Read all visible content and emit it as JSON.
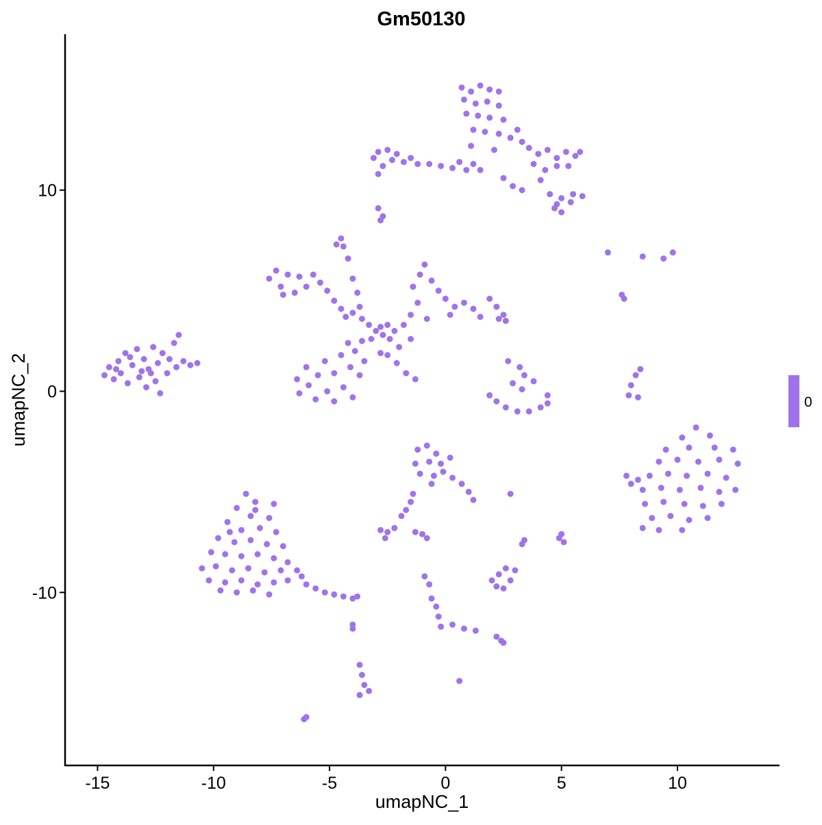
{
  "chart_data": {
    "type": "scatter",
    "title": "Gm50130",
    "xlabel": "umapNC_1",
    "ylabel": "umapNC_2",
    "xlim": [
      -16.4,
      14.4
    ],
    "ylim": [
      -18.6,
      17.75
    ],
    "xticks": [
      -15,
      -10,
      -5,
      0,
      5,
      10
    ],
    "yticks": [
      -10,
      0,
      10
    ],
    "xtick_labels": [
      "-15",
      "-10",
      "-5",
      "0",
      "5",
      "10"
    ],
    "ytick_labels": [
      "-10",
      "0",
      "10"
    ],
    "grid": false,
    "point_color": "#9f74ea",
    "legend": {
      "position": "right",
      "labels": [
        "0"
      ],
      "color": "#9f74ea"
    },
    "points": [
      [
        -14.7,
        0.8
      ],
      [
        -14.5,
        1.2
      ],
      [
        -14.3,
        0.6
      ],
      [
        -14.1,
        1.5
      ],
      [
        -14,
        0.9
      ],
      [
        -13.8,
        1.9
      ],
      [
        -13.7,
        0.4
      ],
      [
        -13.5,
        1.3
      ],
      [
        -13.3,
        2.1
      ],
      [
        -13.2,
        0.7
      ],
      [
        -13,
        1.6
      ],
      [
        -12.9,
        0.2
      ],
      [
        -12.8,
        1.1
      ],
      [
        -12.6,
        2.2
      ],
      [
        -12.5,
        0.5
      ],
      [
        -12.4,
        1.4
      ],
      [
        -12.3,
        -0.1
      ],
      [
        -12.2,
        1.9
      ],
      [
        -12,
        0.9
      ],
      [
        -11.9,
        1.6
      ],
      [
        -11.7,
        2.4
      ],
      [
        -11.6,
        1.2
      ],
      [
        -11.5,
        2.8
      ],
      [
        -11.3,
        1.5
      ],
      [
        -11,
        1.3
      ],
      [
        -10.7,
        1.4
      ],
      [
        -13.6,
        1.7
      ],
      [
        -12.7,
        0.9
      ],
      [
        -14.2,
        1.1
      ],
      [
        -13.1,
        1.0
      ],
      [
        -8.6,
        -5.1
      ],
      [
        -8.2,
        -5.5
      ],
      [
        -7.4,
        -5.6
      ],
      [
        -9,
        -5.8
      ],
      [
        -8.4,
        -6.2
      ],
      [
        -7.6,
        -6.3
      ],
      [
        -9.4,
        -6.5
      ],
      [
        -8.8,
        -6.9
      ],
      [
        -8,
        -6.8
      ],
      [
        -7.3,
        -7
      ],
      [
        -9.8,
        -7.3
      ],
      [
        -9.1,
        -7.5
      ],
      [
        -8.4,
        -7.4
      ],
      [
        -7.7,
        -7.6
      ],
      [
        -7,
        -7.7
      ],
      [
        -10.1,
        -8
      ],
      [
        -9.5,
        -8.1
      ],
      [
        -8.8,
        -8.2
      ],
      [
        -8.1,
        -8.1
      ],
      [
        -7.4,
        -8.3
      ],
      [
        -6.8,
        -8.5
      ],
      [
        -10.5,
        -8.8
      ],
      [
        -9.9,
        -8.7
      ],
      [
        -9.2,
        -8.9
      ],
      [
        -8.5,
        -8.8
      ],
      [
        -7.8,
        -9
      ],
      [
        -7.1,
        -8.9
      ],
      [
        -6.4,
        -8.9
      ],
      [
        -10.2,
        -9.4
      ],
      [
        -9.5,
        -9.5
      ],
      [
        -8.8,
        -9.4
      ],
      [
        -8.1,
        -9.6
      ],
      [
        -7.4,
        -9.5
      ],
      [
        -6.8,
        -9.4
      ],
      [
        -9.7,
        -9.9
      ],
      [
        -9,
        -10
      ],
      [
        -8.3,
        -9.9
      ],
      [
        -7.6,
        -10.1
      ],
      [
        -6,
        -9.6
      ],
      [
        -5.6,
        -9.8
      ],
      [
        -5.2,
        -10
      ],
      [
        -4.8,
        -10.1
      ],
      [
        -4.4,
        -10.2
      ],
      [
        -4,
        -10.3
      ],
      [
        -3.8,
        -10.2
      ],
      [
        -6.2,
        -9.2
      ],
      [
        -9.3,
        -7
      ],
      [
        -8.2,
        -5.9
      ],
      [
        10.8,
        -1.8
      ],
      [
        10.2,
        -2.3
      ],
      [
        11.4,
        -2.2
      ],
      [
        9.5,
        -2.9
      ],
      [
        10.5,
        -2.8
      ],
      [
        11.6,
        -2.8
      ],
      [
        12.4,
        -2.9
      ],
      [
        9.2,
        -3.5
      ],
      [
        10,
        -3.4
      ],
      [
        10.9,
        -3.5
      ],
      [
        11.8,
        -3.4
      ],
      [
        12.6,
        -3.6
      ],
      [
        8.8,
        -4.2
      ],
      [
        9.6,
        -4.1
      ],
      [
        10.4,
        -4.2
      ],
      [
        11.3,
        -4.1
      ],
      [
        12.1,
        -4.3
      ],
      [
        8.5,
        -4.9
      ],
      [
        9.3,
        -4.8
      ],
      [
        10.1,
        -4.9
      ],
      [
        11,
        -4.8
      ],
      [
        11.8,
        -5
      ],
      [
        12.5,
        -4.9
      ],
      [
        8.6,
        -5.6
      ],
      [
        9.4,
        -5.5
      ],
      [
        10.3,
        -5.6
      ],
      [
        11.1,
        -5.7
      ],
      [
        11.9,
        -5.6
      ],
      [
        8.9,
        -6.3
      ],
      [
        9.7,
        -6.2
      ],
      [
        10.5,
        -6.4
      ],
      [
        11.3,
        -6.3
      ],
      [
        9.2,
        -6.9
      ],
      [
        8.5,
        -6.8
      ],
      [
        10.2,
        -6.9
      ],
      [
        7.8,
        -4.2
      ],
      [
        8,
        -4.6
      ],
      [
        8.3,
        -4.4
      ],
      [
        -7.6,
        5.6
      ],
      [
        -7.3,
        6
      ],
      [
        -7.1,
        5.2
      ],
      [
        -6.8,
        5.8
      ],
      [
        -6.5,
        4.9
      ],
      [
        -6.3,
        5.7
      ],
      [
        -6,
        5.2
      ],
      [
        -5.7,
        5.8
      ],
      [
        -5.4,
        5.4
      ],
      [
        -7,
        4.8
      ],
      [
        -5.1,
        5
      ],
      [
        -4.8,
        4.5
      ],
      [
        -4.5,
        4.1
      ],
      [
        -4,
        3.9
      ],
      [
        -3.6,
        3.6
      ],
      [
        -3.3,
        3.3
      ],
      [
        -3,
        3
      ],
      [
        -2.7,
        2.8
      ],
      [
        -2.4,
        2.6
      ],
      [
        -3.2,
        2.6
      ],
      [
        -2.8,
        3.2
      ],
      [
        -2.5,
        3.3
      ],
      [
        -3.7,
        4.2
      ],
      [
        -4.3,
        3.7
      ],
      [
        -4.7,
        7.3
      ],
      [
        -4.5,
        7.6
      ],
      [
        -4.4,
        7.2
      ],
      [
        -4.2,
        6.6
      ],
      [
        -4,
        5.6
      ],
      [
        -3.8,
        4.9
      ],
      [
        -6.4,
        0.6
      ],
      [
        -6.3,
        -0.1
      ],
      [
        -6,
        1.2
      ],
      [
        -5.9,
        0.3
      ],
      [
        -5.6,
        -0.4
      ],
      [
        -5.5,
        0.8
      ],
      [
        -5.2,
        1.5
      ],
      [
        -5.1,
        0
      ],
      [
        -4.8,
        -0.5
      ],
      [
        -4.8,
        0.9
      ],
      [
        -4.5,
        1.8
      ],
      [
        -4.4,
        0.2
      ],
      [
        -4.1,
        1.2
      ],
      [
        -4,
        -0.3
      ],
      [
        -3.9,
        2
      ],
      [
        -3.7,
        0.8
      ],
      [
        -3.6,
        2.5
      ],
      [
        -3.5,
        1.5
      ],
      [
        -4.2,
        2.4
      ],
      [
        -2.2,
        3
      ],
      [
        -1.8,
        3.3
      ],
      [
        -1.5,
        3.8
      ],
      [
        -1.2,
        4.4
      ],
      [
        -1.4,
        5.2
      ],
      [
        -1.1,
        5.8
      ],
      [
        -0.9,
        6.3
      ],
      [
        -0.6,
        5.5
      ],
      [
        -0.3,
        5
      ],
      [
        0,
        4.6
      ],
      [
        0.4,
        4.2
      ],
      [
        0.8,
        4.4
      ],
      [
        1.2,
        4.1
      ],
      [
        1.5,
        3.7
      ],
      [
        1.9,
        4.6
      ],
      [
        2.2,
        4.2
      ],
      [
        2.5,
        3.8
      ],
      [
        2.6,
        3.5
      ],
      [
        2.3,
        3.6
      ],
      [
        -0.8,
        3.6
      ],
      [
        0.2,
        3.8
      ],
      [
        -2,
        2.2
      ],
      [
        -2.8,
        1.9
      ],
      [
        -1.5,
        2.6
      ],
      [
        -2.5,
        1.8
      ],
      [
        -2.1,
        1.4
      ],
      [
        -1.7,
        0.9
      ],
      [
        -1.3,
        0.6
      ],
      [
        -3.1,
        11.6
      ],
      [
        -2.9,
        11.9
      ],
      [
        -2.7,
        11.2
      ],
      [
        -2.5,
        12
      ],
      [
        -2.3,
        11.5
      ],
      [
        -2.1,
        11.8
      ],
      [
        -1.8,
        11.4
      ],
      [
        -1.5,
        11.6
      ],
      [
        -2.9,
        10.8
      ],
      [
        -1.2,
        11.3
      ],
      [
        -0.7,
        11.3
      ],
      [
        -0.2,
        11.2
      ],
      [
        0.3,
        11.1
      ],
      [
        0.6,
        11.4
      ],
      [
        0.9,
        11
      ],
      [
        1.2,
        11.3
      ],
      [
        1.5,
        11.0
      ],
      [
        0.7,
        15.1
      ],
      [
        1.1,
        14.9
      ],
      [
        1.5,
        15.2
      ],
      [
        1.9,
        15
      ],
      [
        2.3,
        14.9
      ],
      [
        0.8,
        14.5
      ],
      [
        1.3,
        14.3
      ],
      [
        1.8,
        14.4
      ],
      [
        2.3,
        14.2
      ],
      [
        0.9,
        13.8
      ],
      [
        1.4,
        13.7
      ],
      [
        1.9,
        13.6
      ],
      [
        2.5,
        13.5
      ],
      [
        1.2,
        13
      ],
      [
        1.7,
        12.9
      ],
      [
        2.3,
        12.8
      ],
      [
        1.1,
        12.2
      ],
      [
        2.1,
        12
      ],
      [
        2.8,
        12.6
      ],
      [
        3.1,
        13
      ],
      [
        3.3,
        12.4
      ],
      [
        3.6,
        12.1
      ],
      [
        4,
        11.8
      ],
      [
        4.4,
        12
      ],
      [
        4.8,
        11.6
      ],
      [
        5.2,
        11.9
      ],
      [
        5.6,
        11.7
      ],
      [
        5.8,
        11.9
      ],
      [
        3.8,
        11.3
      ],
      [
        4.3,
        11
      ],
      [
        4.8,
        11.2
      ],
      [
        5.3,
        11.2
      ],
      [
        4.1,
        10.5
      ],
      [
        2.5,
        10.6
      ],
      [
        2.9,
        10.2
      ],
      [
        3.3,
        10
      ],
      [
        4.5,
        9.8
      ],
      [
        5,
        9.6
      ],
      [
        5.5,
        9.8
      ],
      [
        5.9,
        9.7
      ],
      [
        5.4,
        9.4
      ],
      [
        4.7,
        9.1
      ],
      [
        5,
        8.9
      ],
      [
        4.8,
        9.3
      ],
      [
        -2.8,
        8.5
      ],
      [
        -2.7,
        8.7
      ],
      [
        -2.9,
        9.1
      ],
      [
        2.7,
        1.5
      ],
      [
        3.2,
        1.2
      ],
      [
        3.4,
        0.8
      ],
      [
        2.9,
        0.4
      ],
      [
        3.3,
        0.1
      ],
      [
        3.8,
        0.5
      ],
      [
        4.4,
        -0.2
      ],
      [
        1.9,
        -0.2
      ],
      [
        2.2,
        -0.5
      ],
      [
        2.6,
        -0.8
      ],
      [
        3.1,
        -1
      ],
      [
        3.6,
        -1
      ],
      [
        4.1,
        -0.8
      ],
      [
        4.4,
        -0.6
      ],
      [
        7.9,
        -0.2
      ],
      [
        8,
        0.3
      ],
      [
        8.2,
        0.8
      ],
      [
        8.4,
        1.1
      ],
      [
        8.3,
        -0.3
      ],
      [
        7,
        6.9
      ],
      [
        8.5,
        6.7
      ],
      [
        9.4,
        6.6
      ],
      [
        9.8,
        6.9
      ],
      [
        7.6,
        4.8
      ],
      [
        7.7,
        4.6
      ],
      [
        -1.2,
        -2.9
      ],
      [
        -0.8,
        -2.7
      ],
      [
        -0.4,
        -3.1
      ],
      [
        -1.3,
        -3.6
      ],
      [
        -0.7,
        -3.5
      ],
      [
        -0.2,
        -3.6
      ],
      [
        -1.1,
        -4.1
      ],
      [
        -0.5,
        -4.2
      ],
      [
        -0.1,
        -4
      ],
      [
        -0.6,
        -4.6
      ],
      [
        0.3,
        -4.3
      ],
      [
        0.7,
        -4.6
      ],
      [
        1,
        -5
      ],
      [
        1.2,
        -5.4
      ],
      [
        0.2,
        -3.3
      ],
      [
        -1.4,
        -5.1
      ],
      [
        -1.5,
        -5.5
      ],
      [
        -1.7,
        -5.9
      ],
      [
        -1.9,
        -6.2
      ],
      [
        -2.8,
        -6.9
      ],
      [
        -2.5,
        -7
      ],
      [
        -2.2,
        -6.8
      ],
      [
        -2.6,
        -7.3
      ],
      [
        -1.3,
        -7
      ],
      [
        -1,
        -7.1
      ],
      [
        -0.8,
        -7.3
      ],
      [
        2,
        -9.4
      ],
      [
        2.3,
        -9.1
      ],
      [
        2.6,
        -8.8
      ],
      [
        2.8,
        -9.4
      ],
      [
        2.5,
        -9.8
      ],
      [
        3,
        -8.9
      ],
      [
        2.2,
        -9.7
      ],
      [
        2.8,
        -5.1
      ],
      [
        3.4,
        -7.4
      ],
      [
        3.3,
        -7.6
      ],
      [
        5,
        -7.1
      ],
      [
        5.1,
        -7.5
      ],
      [
        4.9,
        -7.3
      ],
      [
        -0.9,
        -9.2
      ],
      [
        -0.7,
        -9.6
      ],
      [
        -0.6,
        -10.3
      ],
      [
        -0.4,
        -10.7
      ],
      [
        -0.3,
        -11.2
      ],
      [
        -0.2,
        -11.7
      ],
      [
        0.3,
        -11.6
      ],
      [
        0.8,
        -11.8
      ],
      [
        1.3,
        -11.9
      ],
      [
        2.2,
        -12.2
      ],
      [
        2.4,
        -12.4
      ],
      [
        2.5,
        -12.5
      ],
      [
        0.6,
        -14.4
      ],
      [
        -3.7,
        -13.6
      ],
      [
        -3.6,
        -14.1
      ],
      [
        -3.5,
        -14.6
      ],
      [
        -3.7,
        -15.1
      ],
      [
        -3.3,
        -14.9
      ],
      [
        -4,
        -11.8
      ],
      [
        -4,
        -11.6
      ],
      [
        -6.1,
        -16.3
      ],
      [
        -6,
        -16.2
      ]
    ]
  }
}
